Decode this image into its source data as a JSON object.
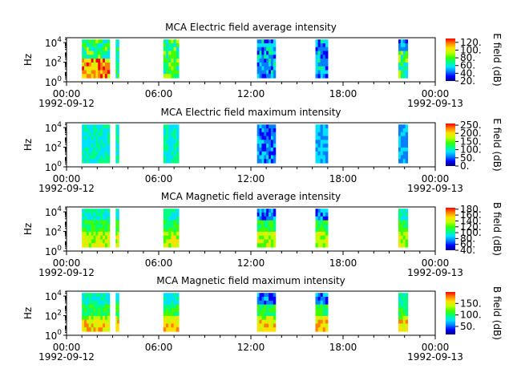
{
  "figure": {
    "bg": "#ffffff",
    "colormap": [
      "#00007f",
      "#0000ff",
      "#0080ff",
      "#00e0ff",
      "#00ff80",
      "#40ff00",
      "#c0ff00",
      "#ffe000",
      "#ff8000",
      "#ff0000"
    ]
  },
  "chart_data": [
    {
      "type": "heatmap",
      "title": "MCA  Electric field average intensity",
      "ylabel": "Hz",
      "yticks": [
        "10^0",
        "10^2",
        "10^4"
      ],
      "ylim_log10": [
        0,
        4.5
      ],
      "x_date_range": [
        "1992-09-12 00:00",
        "1992-09-13 00:00"
      ],
      "xticks": [
        "00:00",
        "06:00",
        "12:00",
        "18:00",
        "00:00"
      ],
      "xtick_dates": [
        "1992-09-12",
        "1992-09-13"
      ],
      "colorbar": {
        "label": "E field (dB)",
        "min": 20,
        "max": 130,
        "ticks": [
          "120.",
          "100.",
          "80.",
          "60.",
          "40.",
          "20."
        ]
      },
      "data_intervals_hours": [
        [
          1.0,
          2.8
        ],
        [
          3.2,
          3.4
        ],
        [
          6.3,
          7.3
        ],
        [
          12.4,
          13.6
        ],
        [
          16.2,
          17.0
        ],
        [
          21.6,
          22.2
        ]
      ],
      "column_levels": [
        [
          "low-freq warm, upper green/cyan",
          "green",
          "green/yellow",
          "cyan/blue notches",
          "cyan/blue",
          "yellow/green, blue at top"
        ]
      ]
    },
    {
      "type": "heatmap",
      "title": "MCA  Electric field maximum intensity",
      "ylabel": "Hz",
      "yticks": [
        "10^0",
        "10^2",
        "10^4"
      ],
      "ylim_log10": [
        0,
        4.5
      ],
      "x_date_range": [
        "1992-09-12 00:00",
        "1992-09-13 00:00"
      ],
      "xticks": [
        "00:00",
        "06:00",
        "12:00",
        "18:00",
        "00:00"
      ],
      "xtick_dates": [
        "1992-09-12",
        "1992-09-13"
      ],
      "colorbar": {
        "label": "E field (dB)",
        "min": 0,
        "max": 260,
        "ticks": [
          "250.",
          "200.",
          "150.",
          "100.",
          "50.",
          "0."
        ]
      },
      "data_intervals_hours": [
        [
          1.0,
          2.8
        ],
        [
          3.2,
          3.4
        ],
        [
          6.3,
          7.3
        ],
        [
          12.4,
          13.6
        ],
        [
          16.2,
          17.0
        ],
        [
          21.6,
          22.2
        ]
      ]
    },
    {
      "type": "heatmap",
      "title": "MCA  Magnetic field average intensity",
      "ylabel": "Hz",
      "yticks": [
        "10^0",
        "10^2",
        "10^4"
      ],
      "ylim_log10": [
        0,
        4.5
      ],
      "x_date_range": [
        "1992-09-12 00:00",
        "1992-09-13 00:00"
      ],
      "xticks": [
        "00:00",
        "06:00",
        "12:00",
        "18:00",
        "00:00"
      ],
      "xtick_dates": [
        "1992-09-12",
        "1992-09-13"
      ],
      "colorbar": {
        "label": "B field (dB)",
        "min": 40,
        "max": 185,
        "ticks": [
          "180.",
          "160.",
          "140.",
          "120.",
          "100.",
          "80.",
          "60.",
          "40."
        ]
      },
      "data_intervals_hours": [
        [
          1.0,
          2.8
        ],
        [
          3.2,
          3.4
        ],
        [
          6.3,
          7.3
        ],
        [
          12.4,
          13.6
        ],
        [
          16.2,
          17.0
        ],
        [
          21.6,
          22.2
        ]
      ]
    },
    {
      "type": "heatmap",
      "title": "MCA  Magnetic field maximum intensity",
      "ylabel": "Hz",
      "yticks": [
        "10^0",
        "10^2",
        "10^4"
      ],
      "ylim_log10": [
        0,
        4.5
      ],
      "x_date_range": [
        "1992-09-12 00:00",
        "1992-09-13 00:00"
      ],
      "xticks": [
        "00:00",
        "06:00",
        "12:00",
        "18:00",
        "00:00"
      ],
      "xtick_dates": [
        "1992-09-12",
        "1992-09-13"
      ],
      "colorbar": {
        "label": "B field (dB)",
        "min": 15,
        "max": 200,
        "ticks": [
          "150.",
          "100.",
          "50."
        ]
      },
      "data_intervals_hours": [
        [
          1.0,
          2.8
        ],
        [
          3.2,
          3.4
        ],
        [
          6.3,
          7.3
        ],
        [
          12.4,
          13.6
        ],
        [
          16.2,
          17.0
        ],
        [
          21.6,
          22.2
        ]
      ]
    }
  ]
}
